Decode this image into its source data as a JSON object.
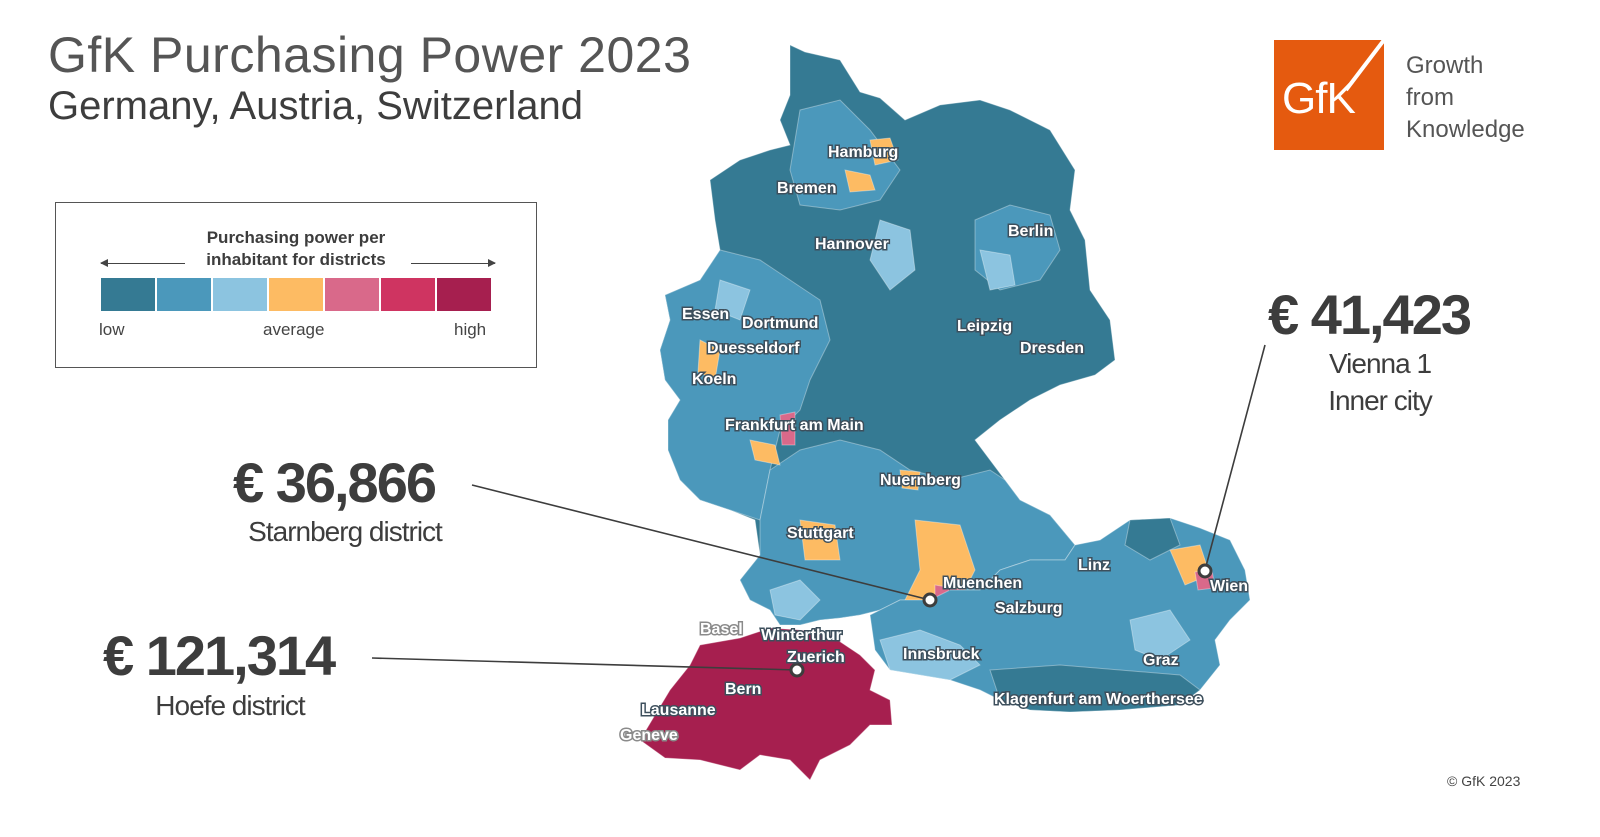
{
  "header": {
    "title": "GfK Purchasing Power 2023",
    "subtitle": "Germany, Austria, Switzerland"
  },
  "legend": {
    "title_line1": "Purchasing power per",
    "title_line2": "inhabitant for districts",
    "label_low": "low",
    "label_average": "average",
    "label_high": "high",
    "colors": [
      "#357a93",
      "#4b98bb",
      "#8cc4e0",
      "#fdbb63",
      "#d9698a",
      "#cf3461",
      "#a61f4f"
    ]
  },
  "map": {
    "colors": {
      "germany_dark": "#357a93",
      "germany_mid": "#4b98bb",
      "light": "#8cc4e0",
      "average": "#fdbb63",
      "above": "#d9698a",
      "switzerland": "#a61f4f"
    },
    "cities": [
      "Hamburg",
      "Bremen",
      "Berlin",
      "Hannover",
      "Essen",
      "Dortmund",
      "Leipzig",
      "Dresden",
      "Duesseldorf",
      "Koeln",
      "Frankfurt am Main",
      "Nuernberg",
      "Stuttgart",
      "Muenchen",
      "Linz",
      "Wien",
      "Salzburg",
      "Basel",
      "Winterthur",
      "Zuerich",
      "Innsbruck",
      "Graz",
      "Bern",
      "Klagenfurt am Woerthersee",
      "Lausanne",
      "Geneve"
    ]
  },
  "callouts": [
    {
      "value": "€ 41,423",
      "line1": "Vienna 1",
      "line2": "Inner city"
    },
    {
      "value": "€ 36,866",
      "line1": "Starnberg district"
    },
    {
      "value": "€ 121,314",
      "line1": "Hoefe district"
    }
  ],
  "logo": {
    "text": "GfK",
    "tagline1": "Growth",
    "tagline2": "from",
    "tagline3": "Knowledge",
    "color": "#e55a0f"
  },
  "copyright": "© GfK 2023"
}
